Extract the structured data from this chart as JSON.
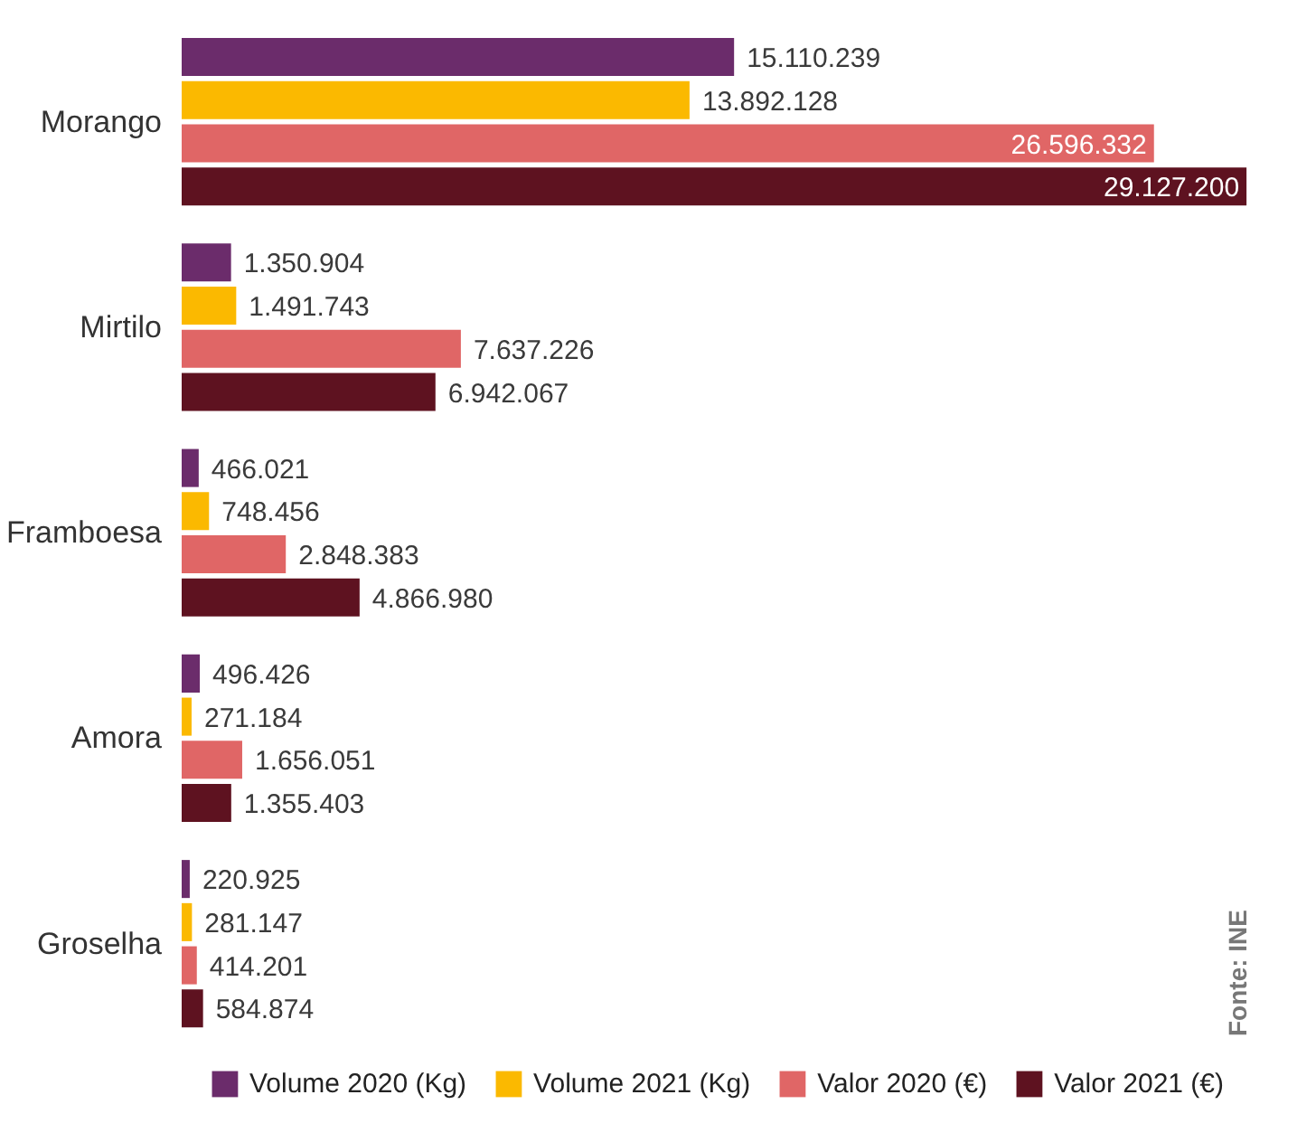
{
  "chart_data": {
    "type": "bar",
    "orientation": "horizontal",
    "categories": [
      "Morango",
      "Mirtilo",
      "Framboesa",
      "Amora",
      "Groselha"
    ],
    "series": [
      {
        "name": "Volume 2020 (Kg)",
        "color": "#6b2c6b",
        "values": [
          15110239,
          1350904,
          466021,
          496426,
          220925
        ],
        "value_labels": [
          "15.110.239",
          "1.350.904",
          "466.021",
          "496.426",
          "220.925"
        ]
      },
      {
        "name": "Volume 2021 (Kg)",
        "color": "#fbb900",
        "values": [
          13892128,
          1491743,
          748456,
          271184,
          281147
        ],
        "value_labels": [
          "13.892.128",
          "1.491.743",
          "748.456",
          "271.184",
          "281.147"
        ]
      },
      {
        "name": "Valor 2020 (€)",
        "color": "#e06666",
        "values": [
          26596332,
          7637226,
          2848383,
          1656051,
          414201
        ],
        "value_labels": [
          "26.596.332",
          "7.637.226",
          "2.848.383",
          "1.656.051",
          "414.201"
        ]
      },
      {
        "name": "Valor 2021 (€)",
        "color": "#5e1220",
        "values": [
          29127200,
          6942067,
          4866980,
          1355403,
          584874
        ],
        "value_labels": [
          "29.127.200",
          "6.942.067",
          "4.866.980",
          "1.355.403",
          "584.874"
        ]
      }
    ],
    "legend": "bottom",
    "grid": false,
    "annotations": [
      "Fonte: INE"
    ]
  }
}
